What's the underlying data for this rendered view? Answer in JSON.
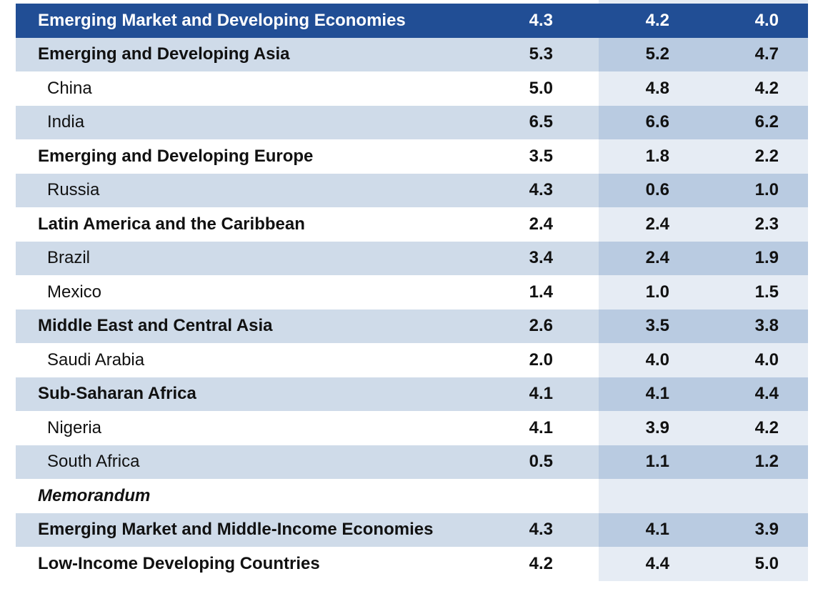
{
  "header": {
    "label": "Emerging Market and Developing Economies",
    "values": [
      "4.3",
      "4.2",
      "4.0"
    ]
  },
  "rows": [
    {
      "label": "Emerging and Developing Asia",
      "level": "group",
      "values": [
        "5.3",
        "5.2",
        "4.7"
      ]
    },
    {
      "label": "China",
      "level": "country",
      "values": [
        "5.0",
        "4.8",
        "4.2"
      ]
    },
    {
      "label": "India",
      "level": "country",
      "values": [
        "6.5",
        "6.6",
        "6.2"
      ]
    },
    {
      "label": "Emerging and Developing Europe",
      "level": "group",
      "values": [
        "3.5",
        "1.8",
        "2.2"
      ]
    },
    {
      "label": "Russia",
      "level": "country",
      "values": [
        "4.3",
        "0.6",
        "1.0"
      ]
    },
    {
      "label": "Latin America and the Caribbean",
      "level": "group",
      "values": [
        "2.4",
        "2.4",
        "2.3"
      ]
    },
    {
      "label": "Brazil",
      "level": "country",
      "values": [
        "3.4",
        "2.4",
        "1.9"
      ]
    },
    {
      "label": "Mexico",
      "level": "country",
      "values": [
        "1.4",
        "1.0",
        "1.5"
      ]
    },
    {
      "label": "Middle East and Central Asia",
      "level": "group",
      "values": [
        "2.6",
        "3.5",
        "3.8"
      ]
    },
    {
      "label": "Saudi Arabia",
      "level": "country",
      "values": [
        "2.0",
        "4.0",
        "4.0"
      ]
    },
    {
      "label": "Sub-Saharan Africa",
      "level": "group",
      "values": [
        "4.1",
        "4.1",
        "4.4"
      ]
    },
    {
      "label": "Nigeria",
      "level": "country",
      "values": [
        "4.1",
        "3.9",
        "4.2"
      ]
    },
    {
      "label": "South Africa",
      "level": "country",
      "values": [
        "0.5",
        "1.1",
        "1.2"
      ]
    },
    {
      "label": "Memorandum",
      "level": "memo",
      "values": [
        "",
        "",
        ""
      ]
    },
    {
      "label": "Emerging Market and Middle-Income Economies",
      "level": "group",
      "values": [
        "4.3",
        "4.1",
        "3.9"
      ]
    },
    {
      "label": "Low-Income Developing Countries",
      "level": "group",
      "values": [
        "4.2",
        "4.4",
        "5.0"
      ]
    }
  ],
  "colors": {
    "header": "#214e95",
    "shade_light": "#cfdbe9",
    "shade_dark": "#b9cbe1",
    "plain_col": "#e6ecf4"
  }
}
